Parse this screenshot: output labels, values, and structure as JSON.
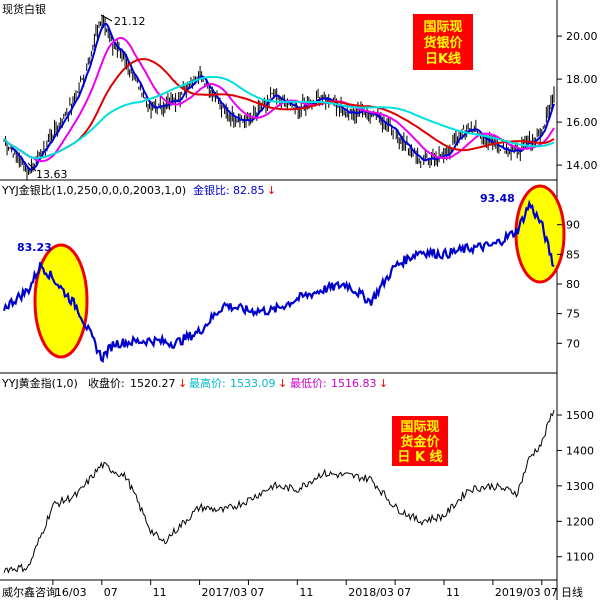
{
  "panels": {
    "silver": {
      "title": "现货白银",
      "annotation_lines": [
        "国际现",
        "货银价",
        "日K线"
      ],
      "max_label": "21.12",
      "min_label": "13.63"
    },
    "ratio": {
      "indicator": "YYJ金银比(1,0,250,0,0,0,2003,1,0)",
      "name": "金银比:",
      "value": "82.85",
      "arrow": "↓",
      "left_peak": "83.23",
      "right_peak": "93.48"
    },
    "gold": {
      "indicator": "YYJ黄金指(1,0)",
      "close_label": "收盘价:",
      "close_value": "1520.27",
      "high_label": "最高价:",
      "high_value": "1533.09",
      "low_label": "最低价:",
      "low_value": "1516.83",
      "arrow": "↓",
      "annotation_lines": [
        "国际现",
        "货金价",
        "日 K 线"
      ]
    }
  },
  "time_axis": {
    "labels": [
      "威尔鑫咨询",
      "16/03",
      "07",
      "11",
      "2017/03",
      "07",
      "11",
      "2018/03",
      "07",
      "11",
      "2019/03",
      "07"
    ],
    "period": "日线"
  },
  "colors": {
    "silver_candles": "#000000",
    "ma_blue": "#0000dd",
    "ma_magenta": "#ee00ee",
    "ma_red": "#dd0000",
    "ma_cyan": "#00e0e0",
    "ratio_line": "#0000cc",
    "highlight_fill": "#ffff00",
    "highlight_stroke": "#ee0000",
    "annotation_box": "#ff0000",
    "annotation_text": "#ffff00"
  },
  "chart_data": [
    {
      "type": "line",
      "title": "现货白银",
      "x": [
        "2015/11",
        "2016/01",
        "2016/03",
        "2016/05",
        "2016/07",
        "2016/08",
        "2016/09",
        "2016/11",
        "2017/01",
        "2017/03",
        "2017/05",
        "2017/07",
        "2017/09",
        "2017/11",
        "2018/01",
        "2018/03",
        "2018/05",
        "2018/07",
        "2018/09",
        "2018/11",
        "2019/01",
        "2019/03",
        "2019/05",
        "2019/07",
        "2019/08"
      ],
      "ylim": [
        13.4,
        21.4
      ],
      "yticks": [
        14.0,
        16.0,
        18.0,
        20.0
      ],
      "series": [
        {
          "values": [
            15.2,
            13.7,
            15.4,
            17.3,
            20.8,
            19.5,
            18.8,
            16.6,
            17.0,
            18.3,
            16.5,
            16.0,
            17.2,
            16.6,
            17.2,
            16.5,
            16.5,
            15.5,
            14.2,
            14.4,
            15.8,
            15.0,
            14.6,
            15.5,
            17.4
          ]
        }
      ]
    },
    {
      "type": "line",
      "title": "金银比",
      "x": [
        "2015/11",
        "2016/01",
        "2016/02",
        "2016/03",
        "2016/05",
        "2016/07",
        "2016/08",
        "2016/11",
        "2017/01",
        "2017/03",
        "2017/05",
        "2017/07",
        "2017/09",
        "2017/11",
        "2018/01",
        "2018/03",
        "2018/05",
        "2018/07",
        "2018/09",
        "2018/11",
        "2019/01",
        "2019/03",
        "2019/05",
        "2019/06",
        "2019/07",
        "2019/08"
      ],
      "ylim": [
        65.5,
        94.5
      ],
      "yticks": [
        70,
        75,
        80,
        85,
        90
      ],
      "series": [
        {
          "values": [
            76.0,
            79.0,
            83.23,
            81.0,
            76.0,
            67.5,
            70.0,
            70.5,
            70.0,
            72.0,
            76.5,
            75.5,
            75.5,
            77.5,
            79.0,
            80.0,
            77.0,
            83.0,
            85.5,
            85.0,
            86.0,
            86.5,
            89.0,
            93.48,
            90.0,
            82.85
          ]
        }
      ]
    },
    {
      "type": "line",
      "title": "国际现货金价",
      "x": [
        "2015/11",
        "2016/01",
        "2016/03",
        "2016/05",
        "2016/07",
        "2016/09",
        "2016/11",
        "2016/12",
        "2017/03",
        "2017/05",
        "2017/07",
        "2017/09",
        "2017/11",
        "2018/01",
        "2018/03",
        "2018/05",
        "2018/07",
        "2018/09",
        "2018/11",
        "2019/01",
        "2019/03",
        "2019/05",
        "2019/06",
        "2019/07",
        "2019/08"
      ],
      "ylim": [
        1040,
        1565
      ],
      "yticks": [
        1100,
        1200,
        1300,
        1400,
        1500
      ],
      "series": [
        {
          "values": [
            1065,
            1070,
            1245,
            1275,
            1360,
            1325,
            1175,
            1140,
            1240,
            1230,
            1260,
            1300,
            1290,
            1335,
            1330,
            1320,
            1240,
            1200,
            1215,
            1290,
            1300,
            1280,
            1380,
            1420,
            1520.27
          ]
        }
      ]
    }
  ]
}
